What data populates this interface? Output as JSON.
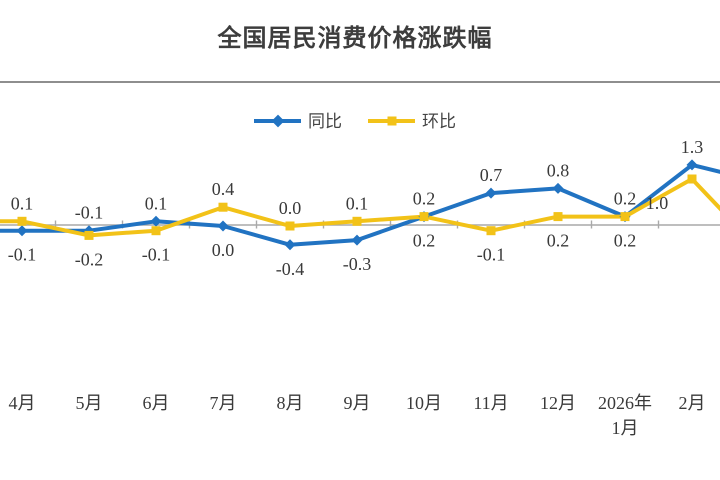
{
  "title": "全国居民消费价格涨跌幅",
  "colors": {
    "tongbi_blue": "#2173c2",
    "huanbi_gold": "#f2c218",
    "axis_gray": "#a9a9a9",
    "divider_gray": "#8e8e8e",
    "text_dark": "#3a3a3a"
  },
  "legend": {
    "items": [
      {
        "label": "同比",
        "marker": "diamond"
      },
      {
        "label": "环比",
        "marker": "square"
      }
    ]
  },
  "chart_data": {
    "type": "line",
    "title": "全国居民消费价格涨跌幅",
    "categories": [
      "4月",
      "5月",
      "6月",
      "7月",
      "8月",
      "9月",
      "10月",
      "11月",
      "12月",
      "2026年1月",
      "2月"
    ],
    "category_display_lines": [
      [
        "4月"
      ],
      [
        "5月"
      ],
      [
        "6月"
      ],
      [
        "7月"
      ],
      [
        "8月"
      ],
      [
        "9月"
      ],
      [
        "10月"
      ],
      [
        "11月"
      ],
      [
        "12月"
      ],
      [
        "2026年",
        "1月"
      ],
      [
        "2月"
      ]
    ],
    "series": [
      {
        "name": "同比",
        "color": "#2173c2",
        "marker": "diamond",
        "values": [
          -0.1,
          -0.1,
          0.1,
          0.0,
          -0.4,
          -0.3,
          0.2,
          0.7,
          0.8,
          0.2,
          1.3
        ]
      },
      {
        "name": "环比",
        "color": "#f2c218",
        "marker": "square",
        "values": [
          0.1,
          -0.2,
          -0.1,
          0.4,
          0.0,
          0.1,
          0.2,
          -0.1,
          0.2,
          0.2,
          1.0
        ]
      }
    ],
    "baseline": 0,
    "grid": false,
    "legend_position": "top",
    "data_labels": true,
    "ylim_visible": [
      -0.5,
      1.4
    ],
    "offscreen_continuation": {
      "left": [
        -0.1,
        0.1
      ],
      "right": [
        0.95,
        -0.5
      ]
    },
    "label_overrides": [
      {
        "series": 1,
        "index": 10,
        "dx": -35,
        "dy": 0
      }
    ]
  }
}
